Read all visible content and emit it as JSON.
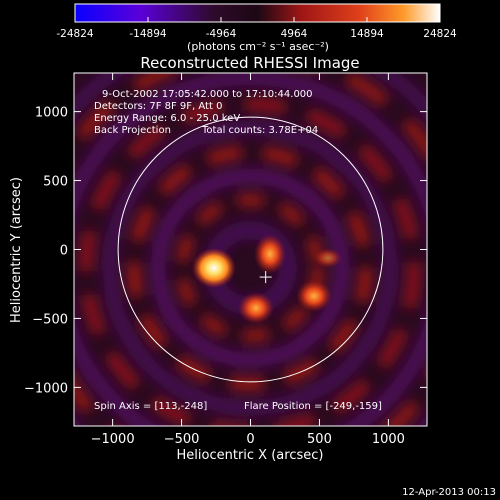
{
  "colorbar": {
    "tick_labels": [
      "-24824",
      "-14894",
      "-4964",
      "4964",
      "14894",
      "24824"
    ],
    "tick_values": [
      -24824,
      -14894,
      -4964,
      4964,
      14894,
      24824
    ],
    "range": [
      -24824,
      24824
    ],
    "units_label": "(photons cm⁻² s⁻¹ asec⁻²)",
    "colors": {
      "stops": [
        "#0a00ff",
        "#5b00d9",
        "#2e0a2a",
        "#1c0814",
        "#9e1616",
        "#e0401a",
        "#ff9a2a",
        "#ffffff"
      ]
    }
  },
  "plot": {
    "title": "Reconstructed RHESSI Image",
    "x_axis_label": "Heliocentric X (arcsec)",
    "y_axis_label": "Heliocentric Y (arcsec)",
    "xlim": [
      -1280,
      1280
    ],
    "ylim": [
      -1280,
      1280
    ],
    "x_ticks": [
      -1000,
      -500,
      0,
      500,
      1000
    ],
    "y_ticks": [
      -1000,
      -500,
      0,
      500,
      1000
    ],
    "x_tick_labels": [
      "−1000",
      "−500",
      "0",
      "500",
      "1000"
    ],
    "y_tick_labels": [
      "−1000",
      "−500",
      "0",
      "500",
      "1000"
    ],
    "solar_limb_radius_arcsec": 960,
    "flare_position": [
      -249,
      -159
    ],
    "marker_position": [
      110,
      -200
    ],
    "background_color": "#2a0a1f"
  },
  "annotations": {
    "time_range": "9-Oct-2002 17:05:42.000 to 17:10:44.000",
    "detectors": "Detectors: 7F 8F 9F, Att 0",
    "energy_range": "Energy Range: 6.0 - 25.0 keV",
    "method": "Back Projection",
    "total_counts": "Total counts: 3.78E+04",
    "spin_axis": "Spin Axis = [113,-248]",
    "flare_position_text": "Flare Position = [-249,-159]"
  },
  "footer": {
    "timestamp": "12-Apr-2013 00:13"
  }
}
